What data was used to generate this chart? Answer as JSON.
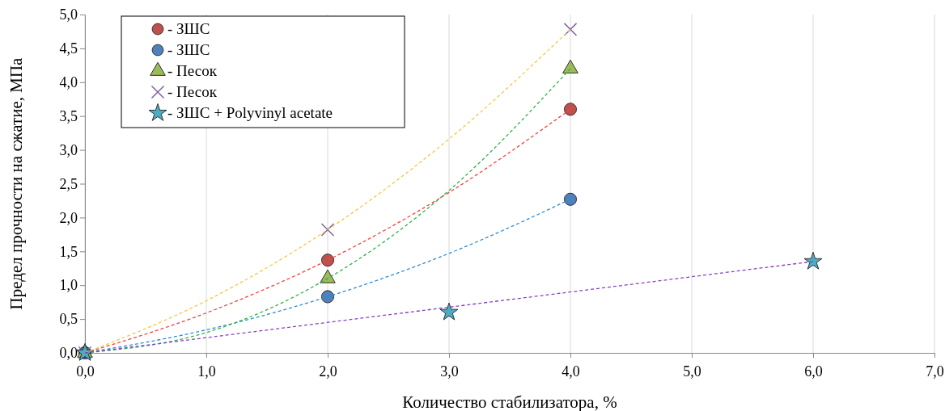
{
  "chart_data": {
    "type": "scatter",
    "xlabel": "Количество стабилизатора, %",
    "ylabel": "Предел прочности на сжатие, МПа",
    "xlim": [
      0,
      7
    ],
    "xticks": [
      {
        "value": 0,
        "label": "0,0"
      },
      {
        "value": 1,
        "label": "1,0"
      },
      {
        "value": 2,
        "label": "2,0"
      },
      {
        "value": 3,
        "label": "3,0"
      },
      {
        "value": 4,
        "label": "4,0"
      },
      {
        "value": 5,
        "label": "5,0"
      },
      {
        "value": 6,
        "label": "6,0"
      },
      {
        "value": 7,
        "label": "7,0"
      }
    ],
    "ylim": [
      0,
      5
    ],
    "yticks": [
      {
        "value": 0,
        "label": "0,0"
      },
      {
        "value": 0.5,
        "label": "0,5"
      },
      {
        "value": 1,
        "label": "1,0"
      },
      {
        "value": 1.5,
        "label": "1,5"
      },
      {
        "value": 2,
        "label": "2,0"
      },
      {
        "value": 2.5,
        "label": "2,5"
      },
      {
        "value": 3,
        "label": "3,0"
      },
      {
        "value": 3.5,
        "label": "3,5"
      },
      {
        "value": 4,
        "label": "4,0"
      },
      {
        "value": 4.5,
        "label": "4,5"
      },
      {
        "value": 5,
        "label": "5,0"
      }
    ],
    "grid": "x",
    "legend": "top left",
    "series": [
      {
        "type": "line",
        "color": "#ff3b3b",
        "line_style": "dashed",
        "marker": "none",
        "x": [
          0,
          1,
          2,
          3,
          4
        ],
        "values": [
          0,
          0.59,
          1.37,
          2.37,
          3.6
        ]
      },
      {
        "type": "line",
        "color": "#2e8bd6",
        "line_style": "dashed",
        "marker": "none",
        "x": [
          0,
          1,
          2,
          3,
          4
        ],
        "values": [
          0,
          0.34,
          0.83,
          1.47,
          2.27
        ]
      },
      {
        "type": "line",
        "color": "#33b24a",
        "line_style": "dashed",
        "marker": "none",
        "x": [
          0,
          1,
          2,
          3,
          4
        ],
        "values": [
          0,
          0.3,
          1.1,
          2.4,
          4.2
        ]
      },
      {
        "type": "line",
        "color": "#f5c842",
        "line_style": "dashed",
        "marker": "none",
        "x": [
          0,
          1,
          2,
          3,
          4
        ],
        "values": [
          0,
          0.77,
          1.82,
          3.16,
          4.78
        ]
      },
      {
        "type": "line",
        "color": "#8a3fc4",
        "line_style": "dashed",
        "marker": "none",
        "x": [
          0,
          6
        ],
        "values": [
          0,
          1.35
        ]
      },
      {
        "name": "- ЗШС",
        "color": "#c0504d",
        "marker": "circle",
        "x": [
          0,
          2,
          4
        ],
        "values": [
          0,
          1.37,
          3.6
        ]
      },
      {
        "name": "- ЗШС",
        "color": "#4f81bd",
        "marker": "circle",
        "x": [
          0,
          2,
          4
        ],
        "values": [
          0,
          0.83,
          2.27
        ]
      },
      {
        "name": "- Песок",
        "color": "#9bbb59",
        "marker": "triangle",
        "x": [
          0,
          2,
          4
        ],
        "values": [
          0,
          1.1,
          4.2
        ]
      },
      {
        "name": "- Песок",
        "color": "#8064a2",
        "marker": "cross",
        "x": [
          0,
          2,
          4
        ],
        "values": [
          0,
          1.82,
          4.78
        ]
      },
      {
        "name": "- ЗШС + Polyvinyl acetate",
        "color": "#4bacc6",
        "marker": "star",
        "x": [
          0,
          3,
          6
        ],
        "values": [
          0,
          0.6,
          1.35
        ]
      }
    ]
  }
}
